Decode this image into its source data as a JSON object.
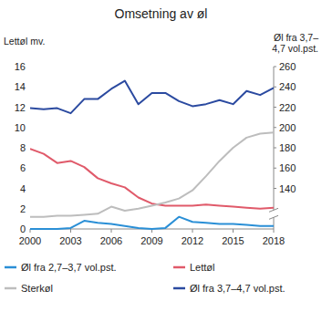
{
  "chart_data": {
    "type": "line",
    "title": "Omsetning av øl",
    "y_label": "Lettøl mv.",
    "y2_label": "Øl fra 3,7–4,7 vol.pst.",
    "x": [
      2000,
      2001,
      2002,
      2003,
      2004,
      2005,
      2006,
      2007,
      2008,
      2009,
      2010,
      2011,
      2012,
      2013,
      2014,
      2015,
      2016,
      2017,
      2018
    ],
    "xlim": [
      2000,
      2018
    ],
    "xticks": [
      2000,
      2003,
      2006,
      2009,
      2012,
      2015,
      2018
    ],
    "ylim": [
      0,
      16
    ],
    "yticks": [
      0,
      2,
      4,
      6,
      8,
      10,
      12,
      14,
      16
    ],
    "y2lim": [
      100,
      260
    ],
    "y2ticks": [
      140,
      160,
      180,
      200,
      220,
      240,
      260
    ],
    "grid": false,
    "legend": "bottom",
    "series": [
      {
        "name": "Øl fra 2,7–3,7 vol.pst.",
        "color": "#2a8fd6",
        "values": [
          0.0,
          0.0,
          0.0,
          0.1,
          0.8,
          0.6,
          0.5,
          0.3,
          0.1,
          0.0,
          0.1,
          1.2,
          0.7,
          0.6,
          0.5,
          0.5,
          0.4,
          0.3,
          0.3
        ]
      },
      {
        "name": "Lettøl",
        "color": "#e05a6a",
        "values": [
          7.9,
          7.4,
          6.5,
          6.7,
          6.1,
          5.0,
          4.5,
          4.1,
          3.1,
          2.5,
          2.3,
          2.3,
          2.3,
          2.4,
          2.3,
          2.2,
          2.1,
          2.0,
          2.1
        ]
      },
      {
        "name": "Sterkøl",
        "color": "#bdbdbd",
        "values": [
          1.2,
          1.2,
          1.3,
          1.3,
          1.4,
          1.5,
          2.2,
          1.8,
          2.0,
          2.3,
          2.6,
          3.0,
          3.8,
          5.2,
          6.7,
          8.0,
          9.0,
          9.4,
          9.5
        ]
      },
      {
        "name": "Øl fra 3,7–4,7 vol.pst.",
        "color": "#2b4aa0",
        "axis": "y2",
        "values": [
          219,
          218,
          219,
          214,
          228,
          228,
          238,
          246,
          223,
          234,
          234,
          226,
          221,
          223,
          227,
          223,
          236,
          232,
          239
        ]
      }
    ]
  }
}
